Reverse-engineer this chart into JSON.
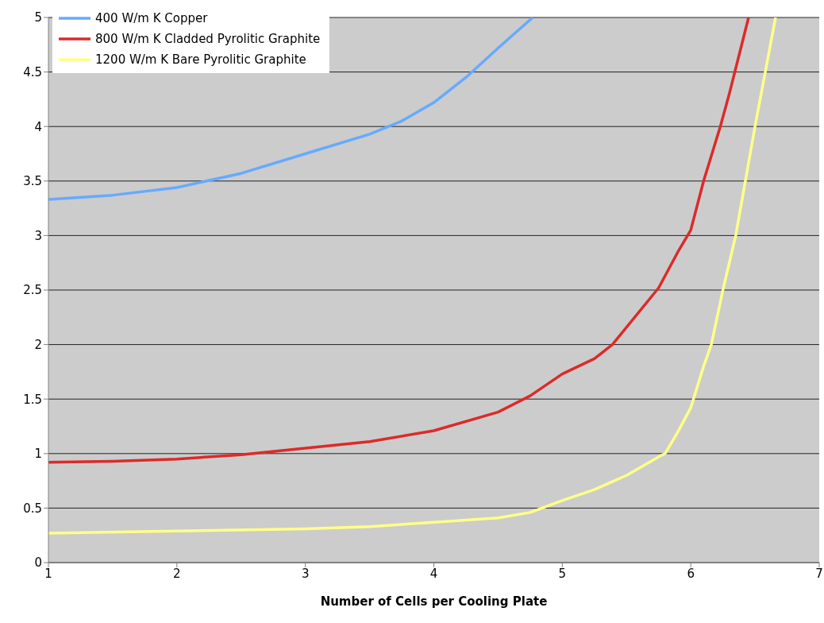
{
  "chart_data": {
    "type": "line",
    "xlabel": "Number of Cells per Cooling Plate",
    "series": [
      {
        "name": "400 W/m K Copper",
        "color": "#66aaff",
        "x": [
          1,
          1.5,
          2,
          2.5,
          3,
          3.5,
          3.75,
          4,
          4.25,
          4.5,
          4.77
        ],
        "values": [
          3.33,
          3.37,
          3.44,
          3.57,
          3.75,
          3.93,
          4.05,
          4.22,
          4.45,
          4.72,
          5
        ]
      },
      {
        "name": "800 W/m K Cladded Pyrolitic Graphite",
        "color": "#dd2a2a",
        "x": [
          1,
          1.5,
          2,
          2.5,
          3,
          3.5,
          4,
          4.5,
          4.75,
          5,
          5.25,
          5.39,
          5.75,
          5.9,
          6,
          6.1,
          6.23,
          6.3,
          6.45
        ],
        "values": [
          0.92,
          0.93,
          0.95,
          0.99,
          1.05,
          1.11,
          1.21,
          1.38,
          1.53,
          1.73,
          1.87,
          2,
          2.52,
          2.85,
          3.05,
          3.5,
          4,
          4.3,
          5
        ]
      },
      {
        "name": "1200 W/m K Bare Pyrolitic Graphite",
        "color": "#ffff88",
        "x": [
          1,
          2,
          3,
          3.5,
          4,
          4.5,
          4.75,
          5,
          5.25,
          5.5,
          5.75,
          5.8,
          5.9,
          6,
          6.1,
          6.16,
          6.25,
          6.35,
          6.5,
          6.66
        ],
        "values": [
          0.27,
          0.29,
          0.31,
          0.33,
          0.37,
          0.41,
          0.46,
          0.57,
          0.67,
          0.8,
          0.97,
          1,
          1.2,
          1.42,
          1.8,
          2,
          2.5,
          3,
          4,
          5
        ]
      }
    ],
    "xlim": [
      1,
      7
    ],
    "xticks": [
      1,
      2,
      3,
      4,
      5,
      6,
      7
    ],
    "ylim": [
      0,
      5
    ],
    "yticks": [
      0,
      0.5,
      1,
      1.5,
      2,
      2.5,
      3,
      3.5,
      4,
      4.5,
      5
    ],
    "grid": "y",
    "legend": "top left",
    "marker": "none"
  }
}
